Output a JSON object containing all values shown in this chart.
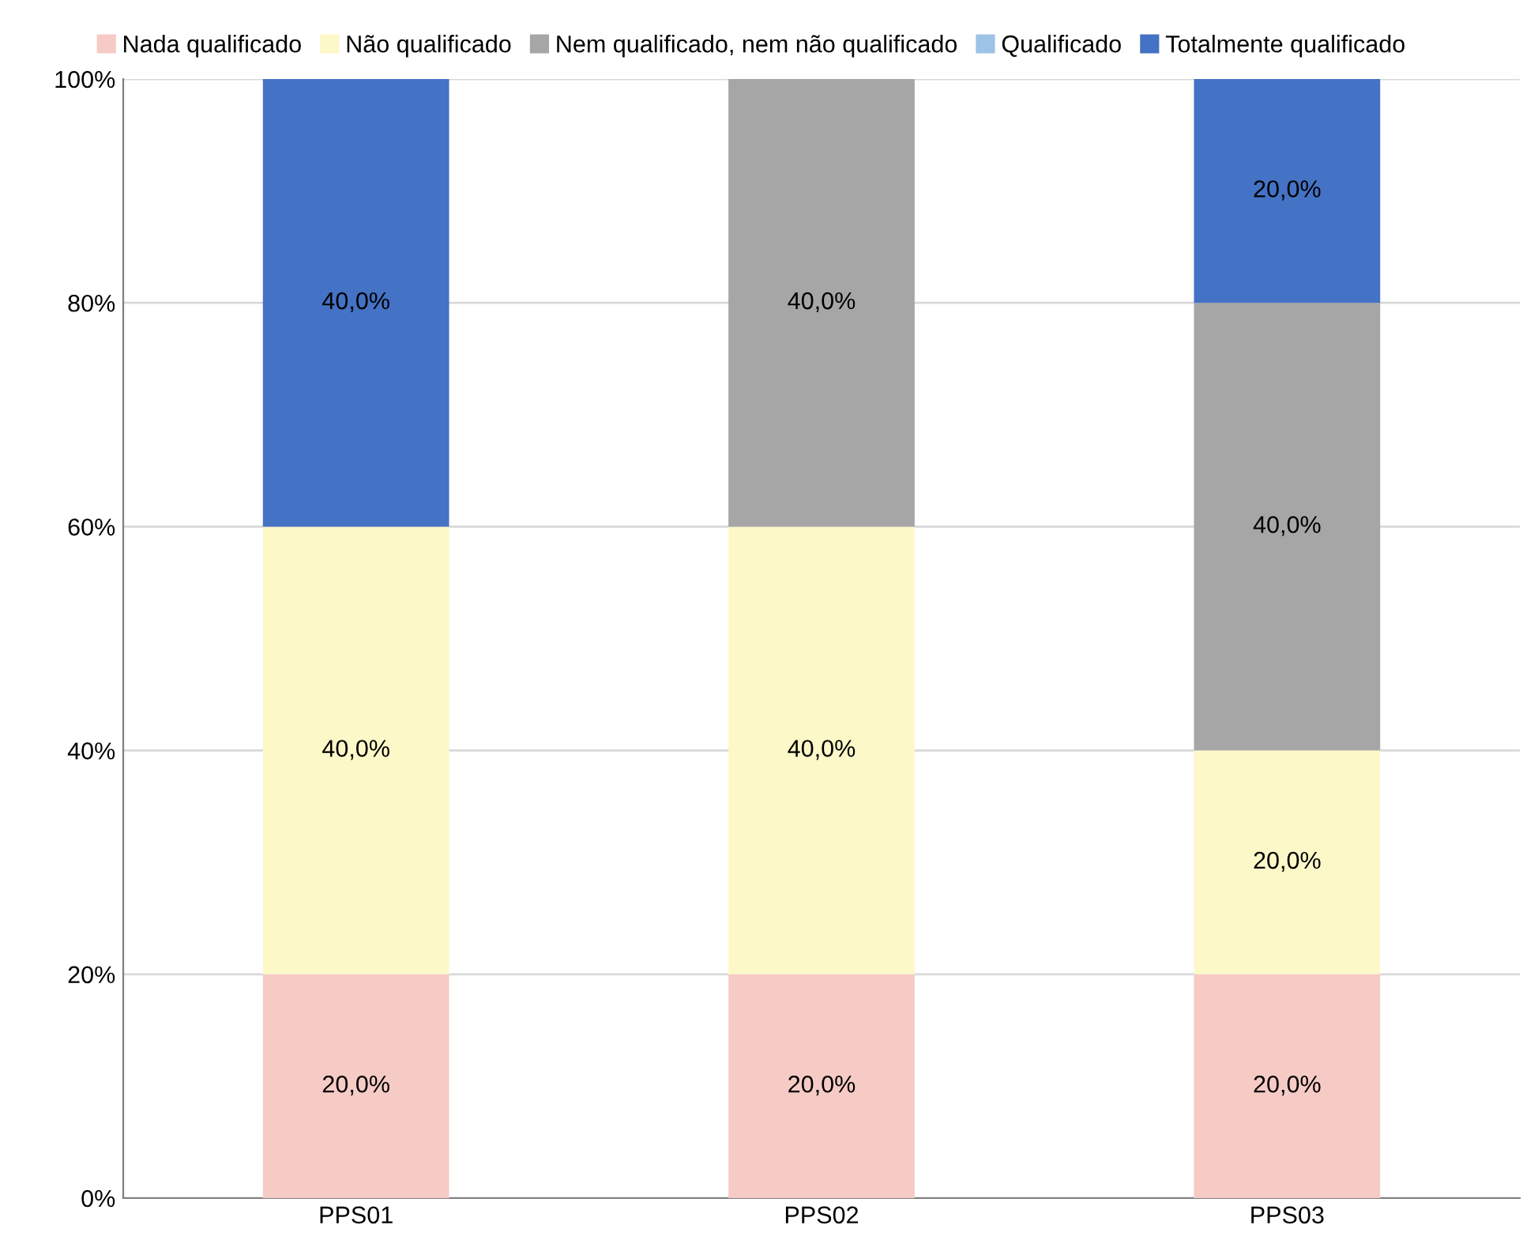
{
  "chart_data": {
    "type": "bar",
    "stacked": true,
    "categories": [
      "PPS01",
      "PPS02",
      "PPS03"
    ],
    "series": [
      {
        "name": "Nada qualificado",
        "color": "#f6cbc5",
        "values": [
          20,
          20,
          20
        ],
        "value_labels": [
          "20,0%",
          "20,0%",
          "20,0%"
        ]
      },
      {
        "name": "Não qualificado",
        "color": "#fdf8c8",
        "values": [
          40,
          40,
          20
        ],
        "value_labels": [
          "40,0%",
          "40,0%",
          "20,0%"
        ]
      },
      {
        "name": "Nem qualificado, nem não qualificado",
        "color": "#a6a6a6",
        "values": [
          0,
          40,
          40
        ],
        "value_labels": [
          null,
          "40,0%",
          "40,0%"
        ]
      },
      {
        "name": "Qualificado",
        "color": "#9dc3e6",
        "values": [
          0,
          0,
          0
        ],
        "value_labels": [
          null,
          null,
          null
        ]
      },
      {
        "name": "Totalmente qualificado",
        "color": "#4472c4",
        "values": [
          40,
          0,
          20
        ],
        "value_labels": [
          "40,0%",
          null,
          "20,0%"
        ]
      }
    ],
    "ylim": [
      0,
      100
    ],
    "yticks": [
      {
        "value": 0,
        "label": "0%"
      },
      {
        "value": 20,
        "label": "20%"
      },
      {
        "value": 40,
        "label": "40%"
      },
      {
        "value": 60,
        "label": "60%"
      },
      {
        "value": 80,
        "label": "80%"
      },
      {
        "value": 100,
        "label": "100%"
      }
    ],
    "grid": "y",
    "legend": "top"
  }
}
